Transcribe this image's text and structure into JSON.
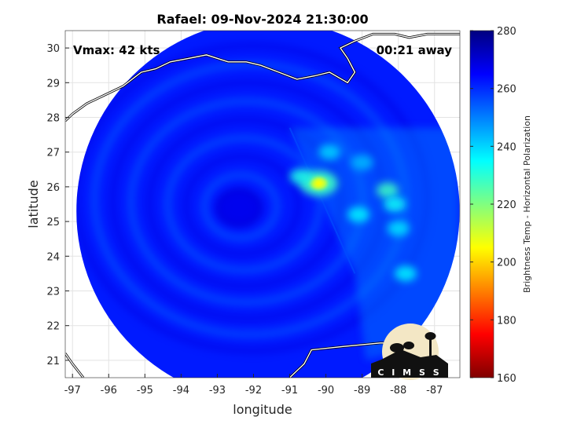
{
  "chart_data": {
    "type": "heatmap",
    "title": "Rafael: 09-Nov-2024 21:30:00",
    "xlabel": "longitude",
    "ylabel": "latitude",
    "xlim": [
      -97.2,
      -86.3
    ],
    "ylim": [
      20.5,
      30.5
    ],
    "xticks": [
      -97,
      -96,
      -95,
      -94,
      -93,
      -92,
      -91,
      -90,
      -89,
      -88,
      -87
    ],
    "yticks": [
      21,
      22,
      23,
      24,
      25,
      26,
      27,
      28,
      29,
      30
    ],
    "grid": true,
    "annotations": {
      "vmax": "Vmax: 42 kts",
      "time_away": "00:21 away"
    },
    "colorbar": {
      "label": "Brightness Temp - Horizontal Polarization",
      "range": [
        160,
        280
      ],
      "ticks": [
        160,
        180,
        200,
        220,
        240,
        260,
        280
      ],
      "colormap": "jet",
      "placement": "right"
    },
    "swath": {
      "center": [
        -91.6,
        25.3
      ],
      "radius_deg": 5.4,
      "background_value": 262
    },
    "features": [
      {
        "name": "convective-core",
        "lon": -90.2,
        "lat": 26.1,
        "value": 205
      },
      {
        "name": "band-inner",
        "lon": -90.7,
        "lat": 26.3,
        "value": 232
      },
      {
        "name": "band-east-1",
        "lon": -88.3,
        "lat": 25.9,
        "value": 228
      },
      {
        "name": "band-east-2",
        "lon": -88.1,
        "lat": 25.5,
        "value": 234
      },
      {
        "name": "band-east-3",
        "lon": -88.0,
        "lat": 24.8,
        "value": 238
      },
      {
        "name": "band-east-4",
        "lon": -87.8,
        "lat": 23.5,
        "value": 236
      },
      {
        "name": "north-arc-1",
        "lon": -89.9,
        "lat": 27.0,
        "value": 240
      },
      {
        "name": "north-arc-2",
        "lon": -89.0,
        "lat": 26.7,
        "value": 243
      },
      {
        "name": "band-south",
        "lon": -89.1,
        "lat": 25.2,
        "value": 236
      },
      {
        "name": "eye-cold",
        "lon": -92.4,
        "lat": 25.4,
        "value": 266
      }
    ]
  },
  "logo": {
    "text": "CIMSS",
    "spaced": "C I M S S"
  }
}
